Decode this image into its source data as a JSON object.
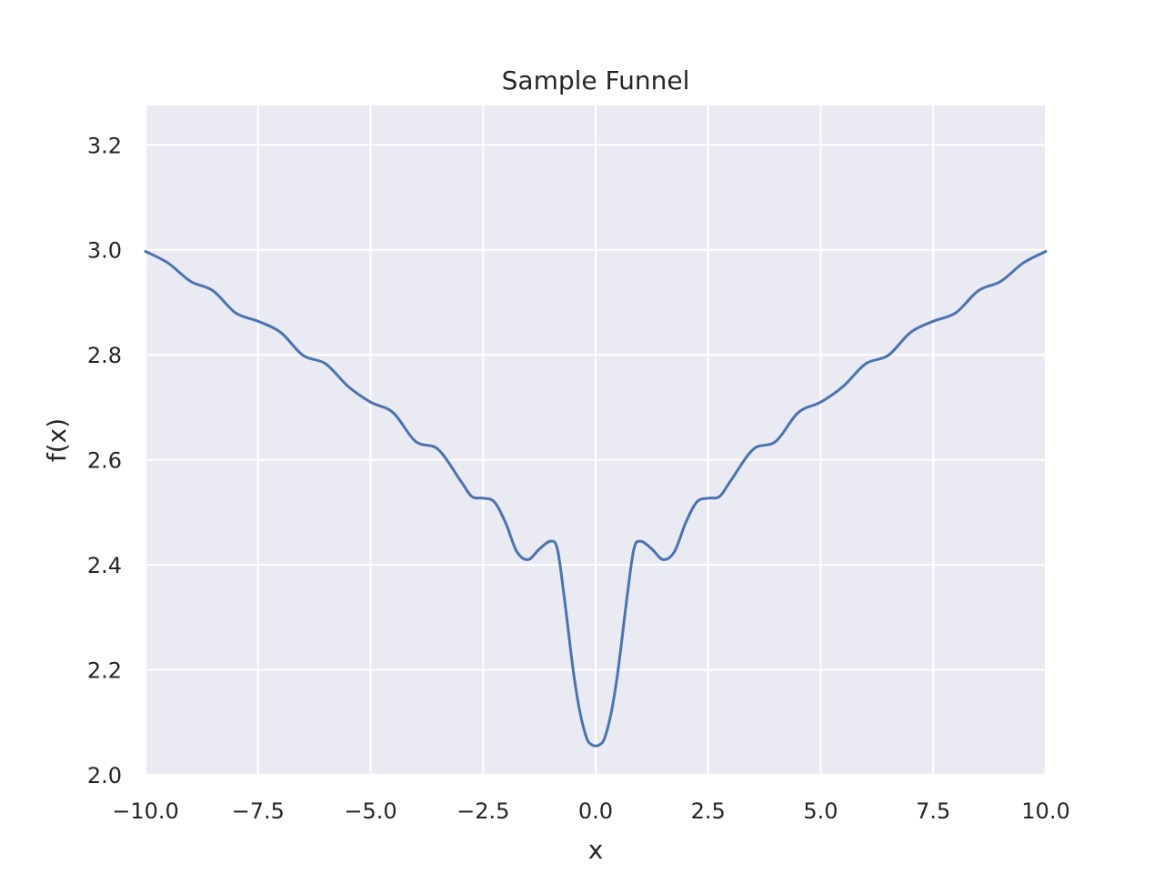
{
  "chart_data": {
    "type": "line",
    "title": "Sample Funnel",
    "xlabel": "x",
    "ylabel": "f(x)",
    "xlim": [
      -10.0,
      10.0
    ],
    "ylim": [
      2.0,
      3.275
    ],
    "grid": true,
    "legend": "none",
    "x_ticks": [
      "−10.0",
      "−7.5",
      "−5.0",
      "−2.5",
      "0.0",
      "2.5",
      "5.0",
      "7.5",
      "10.0"
    ],
    "x_tick_values": [
      -10,
      -7.5,
      -5,
      -2.5,
      0,
      2.5,
      5,
      7.5,
      10
    ],
    "y_ticks": [
      "2.0",
      "2.2",
      "2.4",
      "2.6",
      "2.8",
      "3.0",
      "3.2"
    ],
    "y_tick_values": [
      2.0,
      2.2,
      2.4,
      2.6,
      2.8,
      3.0,
      3.2
    ],
    "series": [
      {
        "color": "#4c72b0",
        "x": [
          -10.0,
          -9.5,
          -9.0,
          -8.5,
          -8.0,
          -7.5,
          -7.0,
          -6.5,
          -6.0,
          -5.5,
          -5.0,
          -4.5,
          -4.0,
          -3.5,
          -3.0,
          -2.75,
          -2.5,
          -2.25,
          -2.0,
          -1.75,
          -1.5,
          -1.25,
          -1.0,
          -0.85,
          -0.7,
          -0.5,
          -0.35,
          -0.2,
          -0.1,
          0.0,
          0.1,
          0.2,
          0.35,
          0.5,
          0.7,
          0.85,
          1.0,
          1.25,
          1.5,
          1.75,
          2.0,
          2.25,
          2.5,
          2.75,
          3.0,
          3.5,
          4.0,
          4.5,
          5.0,
          5.5,
          6.0,
          6.5,
          7.0,
          7.5,
          8.0,
          8.5,
          9.0,
          9.5,
          10.0
        ],
        "y": [
          2.997,
          2.975,
          2.94,
          2.922,
          2.88,
          2.864,
          2.843,
          2.799,
          2.783,
          2.74,
          2.71,
          2.69,
          2.635,
          2.62,
          2.56,
          2.53,
          2.527,
          2.52,
          2.48,
          2.425,
          2.41,
          2.43,
          2.445,
          2.43,
          2.34,
          2.2,
          2.12,
          2.07,
          2.058,
          2.055,
          2.058,
          2.07,
          2.12,
          2.2,
          2.34,
          2.43,
          2.445,
          2.43,
          2.41,
          2.425,
          2.48,
          2.52,
          2.527,
          2.53,
          2.56,
          2.62,
          2.635,
          2.69,
          2.71,
          2.74,
          2.783,
          2.799,
          2.843,
          2.864,
          2.88,
          2.922,
          2.94,
          2.975,
          2.997
        ]
      }
    ]
  },
  "colors": {
    "plot_background": "#eaeaf2",
    "grid": "#ffffff",
    "line": "#4c72b0",
    "text": "#262626"
  }
}
